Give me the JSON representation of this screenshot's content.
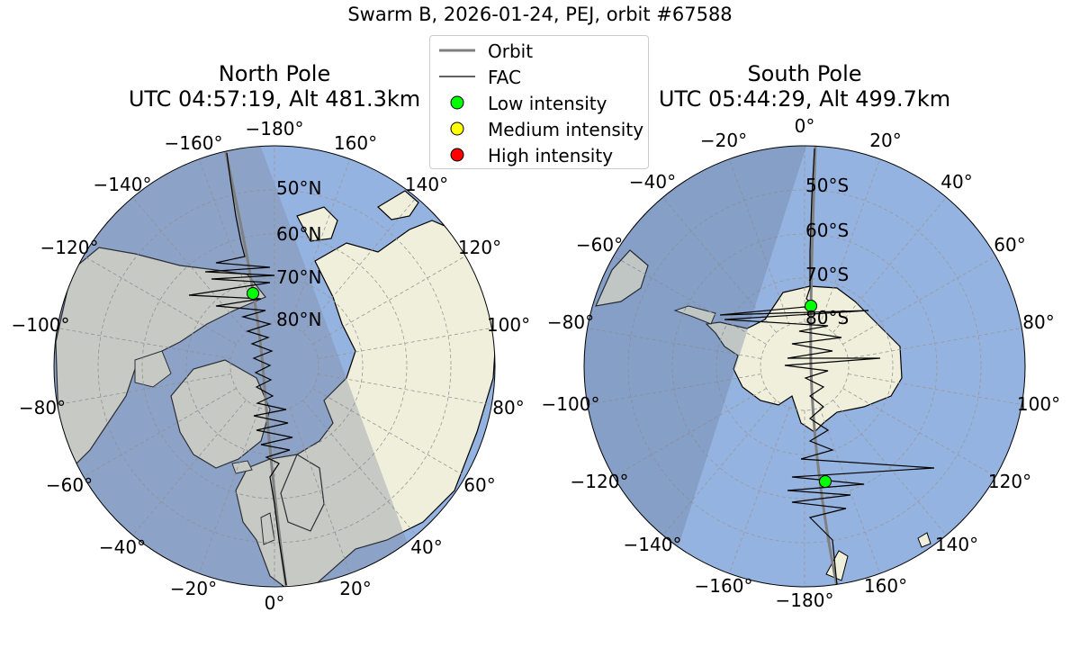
{
  "figure": {
    "suptitle": "Swarm B, 2026-01-24, PEJ, orbit #67588"
  },
  "legend": {
    "items": [
      {
        "label": "Orbit",
        "marker": "line",
        "color": "#808080"
      },
      {
        "label": "FAC",
        "marker": "line",
        "color": "#000000"
      },
      {
        "label": "Low intensity",
        "marker": "circle",
        "color": "#00ff00"
      },
      {
        "label": "Medium intensity",
        "marker": "circle",
        "color": "#ffff00"
      },
      {
        "label": "High intensity",
        "marker": "circle",
        "color": "#ff0000"
      }
    ]
  },
  "colors": {
    "ocean": "#95b3e0",
    "land": "#efefdc",
    "night_shade": "#7b8498",
    "coastline": "#000000",
    "graticule": "#999999",
    "orbit": "#808080",
    "fac": "#000000"
  },
  "chart_data": [
    {
      "type": "map",
      "panel": "north",
      "projection": "polar-stereographic",
      "title_line1": "North Pole",
      "title_line2": "UTC 04:57:19, Alt 481.3km",
      "lat_labels": [
        "50°N",
        "60°N",
        "70°N",
        "80°N"
      ],
      "lat_range": [
        40,
        90
      ],
      "lon_ticks": [
        {
          "lon": 0,
          "label": "0°"
        },
        {
          "lon": 20,
          "label": "20°"
        },
        {
          "lon": 40,
          "label": "40°"
        },
        {
          "lon": 60,
          "label": "60°"
        },
        {
          "lon": 80,
          "label": "80°"
        },
        {
          "lon": 100,
          "label": "100°"
        },
        {
          "lon": 120,
          "label": "120°"
        },
        {
          "lon": 140,
          "label": "140°"
        },
        {
          "lon": 160,
          "label": "160°"
        },
        {
          "lon": 180,
          "label": "−180°"
        },
        {
          "lon": -160,
          "label": "−160°"
        },
        {
          "lon": -140,
          "label": "−140°"
        },
        {
          "lon": -120,
          "label": "−120°"
        },
        {
          "lon": -100,
          "label": "−100°"
        },
        {
          "lon": -80,
          "label": "−80°"
        },
        {
          "lon": -60,
          "label": "−60°"
        },
        {
          "lon": -40,
          "label": "−40°"
        },
        {
          "lon": -20,
          "label": "−20°"
        }
      ],
      "night_region": "western hemisphere (left side)",
      "intensity_markers": [
        {
          "level": "Low intensity",
          "lat": 72,
          "lon": -172
        }
      ]
    },
    {
      "type": "map",
      "panel": "south",
      "projection": "polar-stereographic",
      "title_line1": "South Pole",
      "title_line2": "UTC 05:44:29, Alt 499.7km",
      "lat_labels": [
        "50°S",
        "60°S",
        "70°S",
        "80°S"
      ],
      "lat_range": [
        -90,
        -40
      ],
      "lon_ticks": [
        {
          "lon": 0,
          "label": "0°"
        },
        {
          "lon": 20,
          "label": "20°"
        },
        {
          "lon": 40,
          "label": "40°"
        },
        {
          "lon": 60,
          "label": "60°"
        },
        {
          "lon": 80,
          "label": "80°"
        },
        {
          "lon": 100,
          "label": "100°"
        },
        {
          "lon": 120,
          "label": "120°"
        },
        {
          "lon": 140,
          "label": "140°"
        },
        {
          "lon": 160,
          "label": "160°"
        },
        {
          "lon": 180,
          "label": "−180°"
        },
        {
          "lon": -160,
          "label": "−160°"
        },
        {
          "lon": -140,
          "label": "−140°"
        },
        {
          "lon": -120,
          "label": "−120°"
        },
        {
          "lon": -100,
          "label": "−100°"
        },
        {
          "lon": -80,
          "label": "−80°"
        },
        {
          "lon": -60,
          "label": "−60°"
        },
        {
          "lon": -40,
          "label": "−40°"
        },
        {
          "lon": -20,
          "label": "−20°"
        }
      ],
      "night_region": "western hemisphere (left side)",
      "intensity_markers": [
        {
          "level": "Low intensity",
          "lat": -78,
          "lon": 5
        },
        {
          "level": "Low intensity",
          "lat": -63,
          "lon": 176
        }
      ]
    }
  ]
}
